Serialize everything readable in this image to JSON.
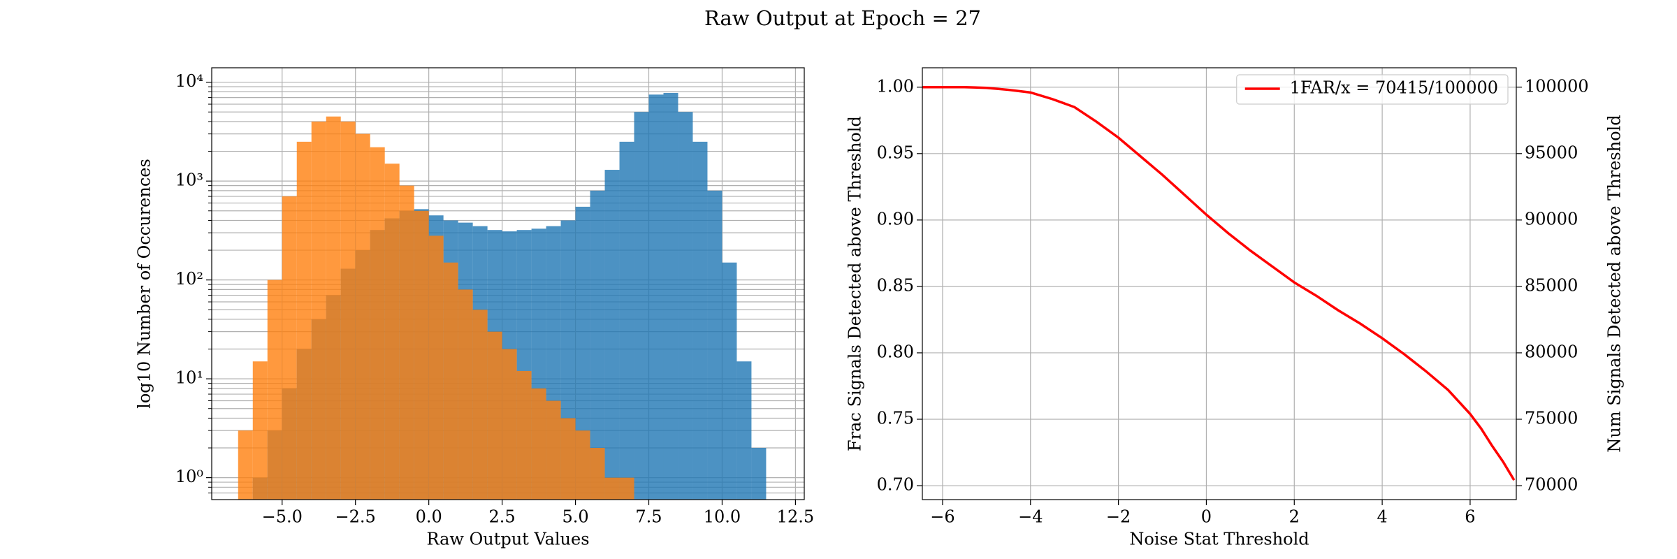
{
  "title": "Raw Output at Epoch = 27",
  "chart_data": [
    {
      "type": "histogram",
      "xlabel": "Raw Output Values",
      "ylabel": "log10 Number of Occurences",
      "bins": [
        -6.5,
        -6,
        -5.5,
        -5,
        -4.5,
        -4,
        -3.5,
        -3,
        -2.5,
        -2,
        -1.5,
        -1,
        -0.5,
        0,
        0.5,
        1,
        1.5,
        2,
        2.5,
        3,
        3.5,
        4,
        4.5,
        5,
        5.5,
        6,
        6.5,
        7,
        7.5,
        8,
        8.5,
        9,
        9.5,
        10,
        10.5,
        11,
        11.5
      ],
      "series": [
        {
          "color": "#1f77b4",
          "values": [
            null,
            1,
            3,
            8,
            20,
            40,
            70,
            130,
            200,
            320,
            420,
            500,
            520,
            450,
            400,
            380,
            350,
            320,
            310,
            320,
            330,
            350,
            400,
            550,
            800,
            1300,
            2500,
            5000,
            7500,
            7800,
            5000,
            2500,
            800,
            150,
            15,
            2
          ]
        },
        {
          "color": "#ff7f0e",
          "values": [
            3,
            15,
            100,
            700,
            2500,
            4000,
            4500,
            4000,
            3000,
            2200,
            1500,
            900,
            500,
            280,
            150,
            80,
            50,
            30,
            20,
            12,
            8,
            6,
            4,
            3,
            2,
            1,
            1,
            null,
            null,
            null,
            null,
            null,
            null,
            null,
            null,
            null
          ]
        }
      ],
      "log_y": true,
      "grid": true,
      "xlim": [
        -7.4,
        12.8
      ],
      "ylim": [
        0.6,
        14000
      ],
      "xticks": [
        {
          "value": -5,
          "label": "−5.0"
        },
        {
          "value": -2.5,
          "label": "−2.5"
        },
        {
          "value": 0,
          "label": "0.0"
        },
        {
          "value": 2.5,
          "label": "2.5"
        },
        {
          "value": 5,
          "label": "5.0"
        },
        {
          "value": 7.5,
          "label": "7.5"
        },
        {
          "value": 10,
          "label": "10.0"
        },
        {
          "value": 12.5,
          "label": "12.5"
        }
      ],
      "yticks": [
        {
          "value": 1,
          "label": "10⁰"
        },
        {
          "value": 10,
          "label": "10¹"
        },
        {
          "value": 100,
          "label": "10²"
        },
        {
          "value": 1000,
          "label": "10³"
        },
        {
          "value": 10000,
          "label": "10⁴"
        }
      ],
      "yminorticks": [
        0.7,
        0.8,
        0.9,
        2,
        3,
        4,
        5,
        6,
        7,
        8,
        9,
        20,
        30,
        40,
        50,
        60,
        70,
        80,
        90,
        200,
        300,
        400,
        500,
        600,
        700,
        800,
        900,
        2000,
        3000,
        4000,
        5000,
        6000,
        7000,
        8000,
        9000
      ]
    },
    {
      "type": "line",
      "xlabel": "Noise Stat Threshold",
      "ylabel": "Frac Signals Detected above Threshold",
      "y2label": "Num Signals Detected above Threshold",
      "x": [
        -6.46,
        -5.5,
        -5,
        -4.5,
        -4,
        -3.5,
        -3,
        -2.5,
        -2,
        -1.5,
        -1,
        -0.5,
        0,
        0.5,
        1,
        1.5,
        2,
        2.5,
        3,
        3.5,
        4,
        4.5,
        5,
        5.5,
        6,
        6.25,
        6.5,
        6.75,
        7.0
      ],
      "series": [
        {
          "name": "1FAR/x = 70415/100000",
          "color": "#ff0000",
          "values": [
            1.0,
            1.0,
            0.9995,
            0.998,
            0.996,
            0.991,
            0.985,
            0.974,
            0.962,
            0.948,
            0.934,
            0.919,
            0.904,
            0.89,
            0.877,
            0.865,
            0.853,
            0.843,
            0.832,
            0.822,
            0.811,
            0.799,
            0.786,
            0.772,
            0.754,
            0.743,
            0.73,
            0.718,
            0.70415
          ]
        }
      ],
      "legend": "upper right",
      "grid": true,
      "xlim": [
        -6.46,
        7.05
      ],
      "ylim": [
        0.6895,
        1.0146
      ],
      "y2lim": [
        68950,
        101460
      ],
      "xticks": [
        {
          "value": -6,
          "label": "−6"
        },
        {
          "value": -4,
          "label": "−4"
        },
        {
          "value": -2,
          "label": "−2"
        },
        0,
        2,
        4,
        6
      ],
      "yticks": [
        {
          "value": 0.7,
          "label": "0.70"
        },
        0.75,
        {
          "value": 0.8,
          "label": "0.80"
        },
        0.85,
        {
          "value": 0.9,
          "label": "0.90"
        },
        0.95,
        {
          "value": 1.0,
          "label": "1.00"
        }
      ],
      "y2ticks": [
        70000,
        75000,
        80000,
        85000,
        90000,
        95000,
        100000
      ]
    }
  ]
}
